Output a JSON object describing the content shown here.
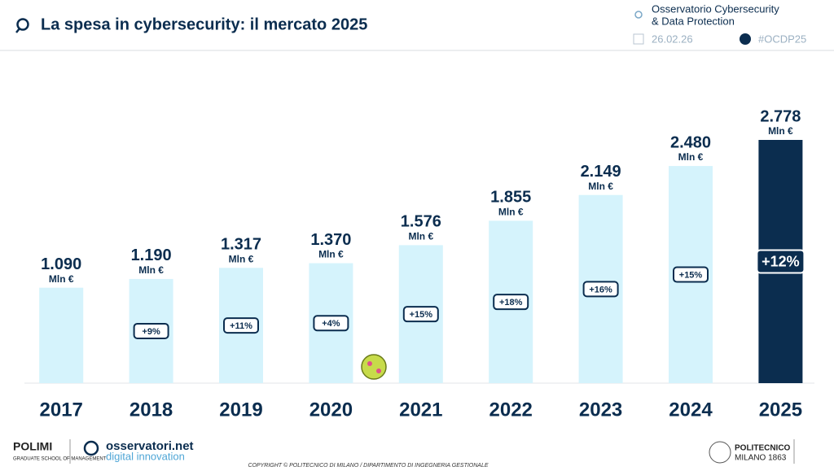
{
  "header": {
    "title": "La spesa in cybersecurity: il mercato 2025",
    "source_line1": "Osservatorio Cybersecurity",
    "source_line2": "& Data Protection",
    "date": "26.02.26",
    "hashtag": "#OCDP25"
  },
  "chart_data": {
    "type": "bar",
    "categories": [
      "2017",
      "2018",
      "2019",
      "2020",
      "2021",
      "2022",
      "2023",
      "2024",
      "2025"
    ],
    "values": [
      1090,
      1190,
      1317,
      1370,
      1576,
      1855,
      2149,
      2480,
      2778
    ],
    "value_labels": [
      "1.090",
      "1.190",
      "1.317",
      "1.370",
      "1.576",
      "1.855",
      "2.149",
      "2.480",
      "2.778"
    ],
    "unit_label": "Mln €",
    "colors": [
      "#d5f3fc",
      "#d5f3fc",
      "#d5f3fc",
      "#d5f3fc",
      "#d5f3fc",
      "#d5f3fc",
      "#d5f3fc",
      "#d5f3fc",
      "#0b2d4f"
    ],
    "growth_values": [
      null,
      9,
      11,
      4,
      15,
      18,
      16,
      15,
      12
    ],
    "growth_labels": [
      null,
      "+9%",
      "+11%",
      "+4%",
      "+15%",
      "+18%",
      "+16%",
      "+15%",
      "+12%"
    ]
  },
  "footer": {
    "polimi": "POLIMI",
    "school": "GRADUATE SCHOOL OF MANAGEMENT",
    "osservatori": "osservatori.net",
    "digital": "digital innovation",
    "copyright": "COPYRIGHT © POLITECNICO DI MILANO / DIPARTIMENTO DI INGEGNERIA GESTIONALE",
    "politecnico": "POLITECNICO",
    "milano": "MILANO 1863"
  }
}
